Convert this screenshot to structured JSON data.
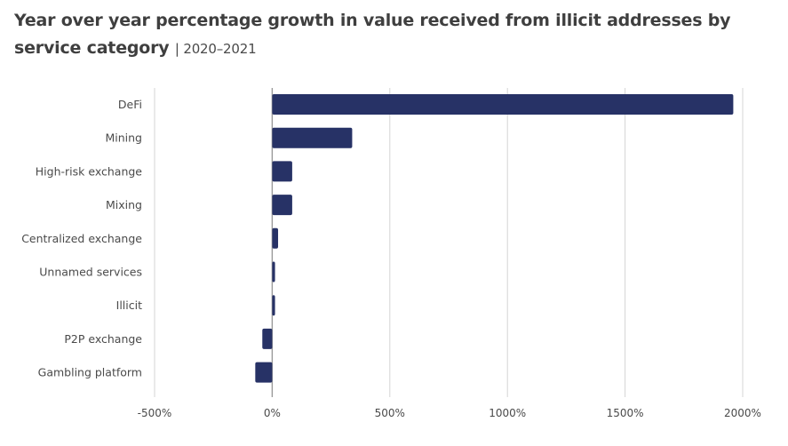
{
  "header": {
    "title": "Year over year percentage growth in value received from illicit addresses by service category",
    "separator": "|",
    "subtitle": "2020–2021"
  },
  "chart_data": {
    "type": "bar",
    "orientation": "horizontal",
    "title": "Year over year percentage growth in value received from illicit addresses by service category",
    "subtitle": "2020–2021",
    "categories": [
      "DeFi",
      "Mining",
      "High-risk exchange",
      "Mixing",
      "Centralized exchange",
      "Unnamed services",
      "Illicit",
      "P2P exchange",
      "Gambling platform"
    ],
    "values": [
      1960,
      340,
      85,
      85,
      25,
      12,
      12,
      -42,
      -72
    ],
    "xlim": [
      -500,
      2000
    ],
    "xticks": [
      -500,
      0,
      500,
      1000,
      1500,
      2000
    ],
    "xtick_labels": [
      "-500%",
      "0%",
      "500%",
      "1000%",
      "1500%",
      "2000%"
    ],
    "xlabel": "",
    "ylabel": "",
    "grid": "vertical",
    "bar_color": "#273266",
    "grid_color": "#d4d4d4",
    "zero_line_color": "#9a9a9a"
  }
}
